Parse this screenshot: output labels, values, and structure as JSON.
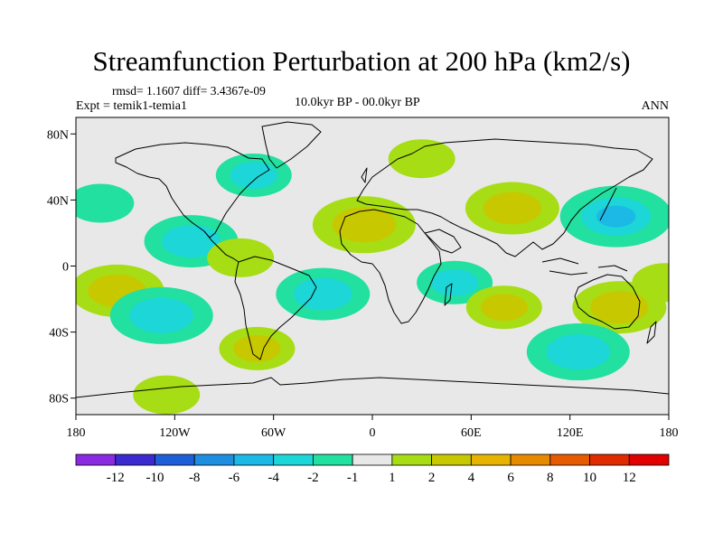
{
  "title": "Streamfunction Perturbation at 200 hPa (km2/s)",
  "stats": "rmsd= 1.1607 diff= 3.4367e-09",
  "experiment": "Expt = temik1-temia1",
  "period": "10.0kyr BP - 00.0kyr BP",
  "season": "ANN",
  "axes": {
    "lon_ticks": [
      "180",
      "120W",
      "60W",
      "0",
      "60E",
      "120E",
      "180"
    ],
    "lat_ticks": [
      "80N",
      "40N",
      "0",
      "40S",
      "80S"
    ]
  },
  "colorbar": {
    "colors": [
      "#8a2be2",
      "#3a2ad0",
      "#1e5fd8",
      "#1e8fe0",
      "#1cb8e6",
      "#1cd6d8",
      "#22e0a0",
      "#e8e8e8",
      "#a6dd14",
      "#c8c800",
      "#e6b400",
      "#e68a00",
      "#e65a00",
      "#e02a00",
      "#e00000"
    ],
    "labels": [
      "-12",
      "-10",
      "-8",
      "-6",
      "-4",
      "-2",
      "-1",
      "1",
      "2",
      "4",
      "6",
      "8",
      "10",
      "12"
    ]
  },
  "chart_data": {
    "type": "contour-map",
    "variable": "Streamfunction Perturbation at 200 hPa",
    "units": "km2/s",
    "rmsd": 1.1607,
    "diff": 3.4367e-09,
    "xlim": [
      -180,
      180
    ],
    "ylim": [
      -90,
      90
    ],
    "levels": [
      -12,
      -10,
      -8,
      -6,
      -4,
      -2,
      -1,
      1,
      2,
      4,
      6,
      8,
      10,
      12
    ],
    "anomalies": [
      {
        "lon": -165,
        "lat": 38,
        "value": -1.5
      },
      {
        "lon": -155,
        "lat": -15,
        "value": 3
      },
      {
        "lon": -128,
        "lat": -30,
        "value": -3.5
      },
      {
        "lon": -110,
        "lat": 15,
        "value": -3
      },
      {
        "lon": -72,
        "lat": 55,
        "value": -2
      },
      {
        "lon": -80,
        "lat": 5,
        "value": 1.5
      },
      {
        "lon": -70,
        "lat": -50,
        "value": 2
      },
      {
        "lon": -125,
        "lat": -78,
        "value": 1.5
      },
      {
        "lon": -5,
        "lat": 25,
        "value": 3.5
      },
      {
        "lon": -30,
        "lat": -17,
        "value": -3
      },
      {
        "lon": 30,
        "lat": 65,
        "value": 1.5
      },
      {
        "lon": 85,
        "lat": 35,
        "value": 3
      },
      {
        "lon": 50,
        "lat": -10,
        "value": -2
      },
      {
        "lon": 80,
        "lat": -25,
        "value": 2
      },
      {
        "lon": 148,
        "lat": 30,
        "value": -4
      },
      {
        "lon": 150,
        "lat": -25,
        "value": 3
      },
      {
        "lon": 125,
        "lat": -52,
        "value": -3.5
      },
      {
        "lon": 178,
        "lat": -10,
        "value": 1.5
      }
    ]
  }
}
